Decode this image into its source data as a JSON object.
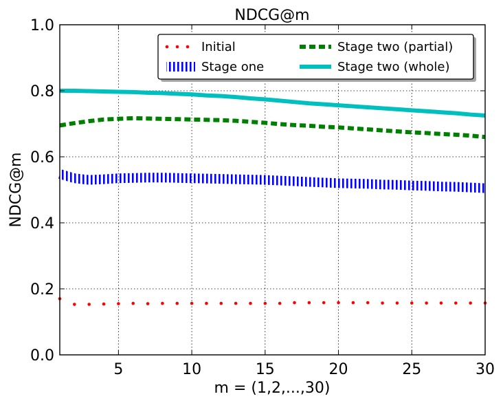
{
  "chart_data": {
    "type": "line",
    "title": "NDCG@m",
    "xlabel": "m = (1,2,...,30)",
    "ylabel": "NDCG@m",
    "xlim": [
      1,
      30
    ],
    "ylim": [
      0.0,
      1.0
    ],
    "x_ticks": [
      5,
      10,
      15,
      20,
      25,
      30
    ],
    "y_ticks": [
      0.0,
      0.2,
      0.4,
      0.6,
      0.8,
      1.0
    ],
    "x_tick_labels": [
      "5",
      "10",
      "15",
      "20",
      "25",
      "30"
    ],
    "y_tick_labels": [
      "0.0",
      "0.2",
      "0.4",
      "0.6",
      "0.8",
      "1.0"
    ],
    "grid": true,
    "legend_position": "top-right",
    "x": [
      1,
      2,
      3,
      4,
      5,
      6,
      7,
      8,
      9,
      10,
      11,
      12,
      13,
      14,
      15,
      16,
      17,
      18,
      19,
      20,
      21,
      22,
      23,
      24,
      25,
      26,
      27,
      28,
      29,
      30
    ],
    "series": [
      {
        "name": "Initial",
        "color": "#ff0000",
        "style": "dotted",
        "values": [
          0.17,
          0.153,
          0.153,
          0.154,
          0.155,
          0.156,
          0.155,
          0.156,
          0.156,
          0.156,
          0.156,
          0.156,
          0.156,
          0.156,
          0.156,
          0.156,
          0.158,
          0.158,
          0.158,
          0.158,
          0.158,
          0.158,
          0.157,
          0.157,
          0.157,
          0.157,
          0.157,
          0.157,
          0.157,
          0.157
        ]
      },
      {
        "name": "Stage one",
        "color": "#0000ff",
        "style": "hatched",
        "values": [
          0.548,
          0.535,
          0.53,
          0.532,
          0.535,
          0.536,
          0.537,
          0.537,
          0.536,
          0.535,
          0.534,
          0.533,
          0.532,
          0.531,
          0.53,
          0.528,
          0.526,
          0.524,
          0.522,
          0.52,
          0.519,
          0.518,
          0.516,
          0.515,
          0.513,
          0.512,
          0.51,
          0.509,
          0.507,
          0.505
        ]
      },
      {
        "name": "Stage two (partial)",
        "color": "#008000",
        "style": "dashed",
        "values": [
          0.695,
          0.702,
          0.708,
          0.713,
          0.715,
          0.717,
          0.716,
          0.715,
          0.714,
          0.713,
          0.712,
          0.711,
          0.709,
          0.706,
          0.703,
          0.699,
          0.696,
          0.694,
          0.691,
          0.689,
          0.686,
          0.683,
          0.68,
          0.677,
          0.674,
          0.672,
          0.669,
          0.667,
          0.664,
          0.66
        ]
      },
      {
        "name": "Stage two (whole)",
        "color": "#00bfbf",
        "style": "solid",
        "values": [
          0.8,
          0.8,
          0.799,
          0.798,
          0.797,
          0.796,
          0.794,
          0.793,
          0.791,
          0.789,
          0.786,
          0.784,
          0.781,
          0.777,
          0.774,
          0.77,
          0.766,
          0.762,
          0.759,
          0.756,
          0.753,
          0.75,
          0.747,
          0.744,
          0.741,
          0.738,
          0.735,
          0.732,
          0.728,
          0.725
        ]
      }
    ]
  }
}
